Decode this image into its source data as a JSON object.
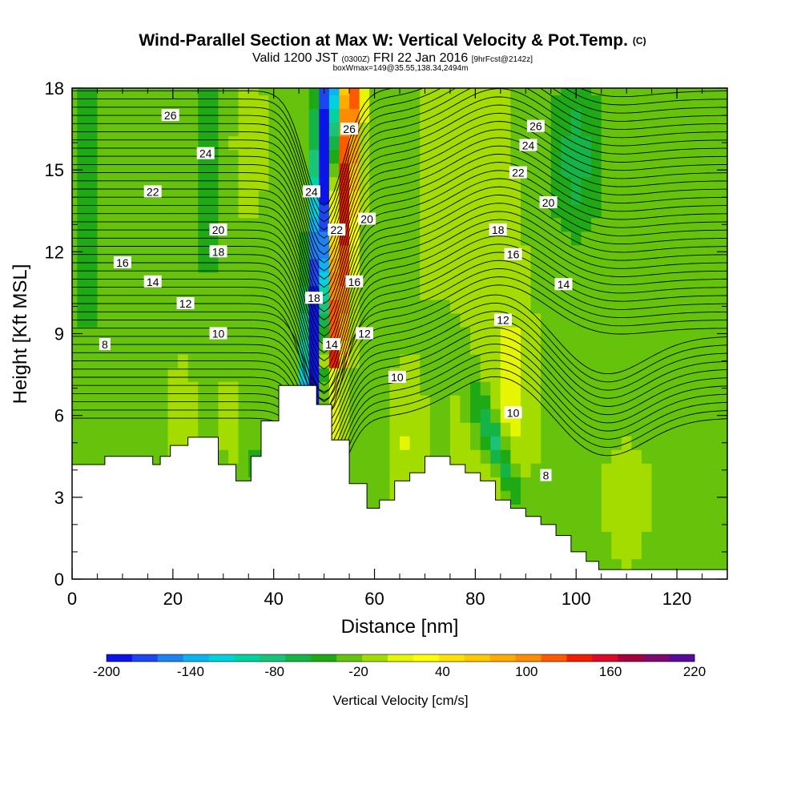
{
  "chart_data": {
    "type": "heatmap",
    "title": "Wind-Parallel Section at Max W: Vertical Velocity & Pot.Temp.",
    "title_mark": "(C)",
    "subtitle_parts": [
      "Valid 1200 JST ",
      "(0300Z)",
      " FRI 22 Jan 2016 ",
      "[9hrFcst@2142z]"
    ],
    "subtitle2": "boxWmax=149@35.55,138.34,2494m",
    "xlabel": "Distance [nm]",
    "ylabel": "Height [Kft MSL]",
    "xlim": [
      0,
      130
    ],
    "ylim": [
      0,
      18
    ],
    "x_ticks": [
      0,
      20,
      40,
      60,
      80,
      100,
      120
    ],
    "y_ticks": [
      0,
      3,
      6,
      9,
      12,
      15,
      18
    ],
    "x_tick_labels": [
      "0",
      "20",
      "40",
      "60",
      "80",
      "100",
      "120"
    ],
    "y_tick_labels": [
      "0",
      "3",
      "6",
      "9",
      "12",
      "15",
      "18"
    ],
    "colorbar": {
      "label": "Vertical Velocity [cm/s]",
      "min": -200,
      "max": 220,
      "step": 20,
      "tick_values": [
        -200,
        -140,
        -80,
        -20,
        40,
        100,
        160,
        220
      ],
      "tick_labels": [
        "-200",
        "-140",
        "-80",
        "-20",
        "40",
        "100",
        "160",
        "220"
      ],
      "colors": [
        "#0a14e6",
        "#1e46f0",
        "#1e82f0",
        "#0ab4f0",
        "#00d2dc",
        "#00d2a0",
        "#19c378",
        "#14b446",
        "#1eaa14",
        "#64c30a",
        "#a5dc00",
        "#e6f500",
        "#ffff00",
        "#ffe100",
        "#ffc800",
        "#ffaa00",
        "#ff8c00",
        "#ff5a00",
        "#f01e00",
        "#dc0a28",
        "#a5003c",
        "#7d0a6e",
        "#5a0a9b"
      ]
    },
    "vertical_velocity_cm_s": {
      "x": [
        0,
        2,
        4,
        6,
        8,
        10,
        12,
        14,
        16,
        18,
        20,
        22,
        24,
        26,
        28,
        30,
        32,
        34,
        36,
        38,
        40,
        42,
        44,
        46,
        48,
        50,
        52,
        54,
        56,
        58,
        60,
        62,
        64,
        66,
        68,
        70,
        72,
        74,
        76,
        78,
        80,
        82,
        84,
        86,
        88,
        90,
        92,
        94,
        96,
        98,
        100,
        102,
        104,
        106,
        108,
        110,
        112,
        114,
        116,
        118,
        120,
        122,
        124,
        126,
        128,
        130
      ],
      "y": [
        0,
        0.5,
        1,
        1.5,
        2,
        2.5,
        3,
        3.5,
        4,
        4.5,
        5,
        5.5,
        6,
        6.5,
        7,
        7.5,
        8,
        8.5,
        9,
        9.5,
        10,
        10.5,
        11,
        11.5,
        12,
        12.5,
        13,
        13.5,
        14,
        14.5,
        15,
        15.5,
        16,
        16.5,
        17,
        17.5,
        18
      ],
      "note": "computed field approximation"
    },
    "terrain_kft": [
      [
        0,
        4.2
      ],
      [
        6.5,
        4.2
      ],
      [
        6.5,
        4.5
      ],
      [
        16,
        4.5
      ],
      [
        16,
        4.2
      ],
      [
        17.5,
        4.2
      ],
      [
        17.5,
        4.5
      ],
      [
        19.5,
        4.5
      ],
      [
        19.5,
        4.9
      ],
      [
        23,
        4.9
      ],
      [
        23,
        5.2
      ],
      [
        29,
        5.2
      ],
      [
        29,
        4.2
      ],
      [
        32.5,
        4.2
      ],
      [
        32.5,
        3.6
      ],
      [
        35.5,
        3.6
      ],
      [
        35.5,
        4.5
      ],
      [
        37.5,
        4.5
      ],
      [
        37.5,
        5.8
      ],
      [
        41,
        5.8
      ],
      [
        41,
        7.1
      ],
      [
        48.5,
        7.1
      ],
      [
        48.5,
        6.4
      ],
      [
        51.5,
        6.4
      ],
      [
        51.5,
        5.1
      ],
      [
        55,
        5.1
      ],
      [
        55,
        3.5
      ],
      [
        58.5,
        3.5
      ],
      [
        58.5,
        2.6
      ],
      [
        61,
        2.6
      ],
      [
        61,
        2.9
      ],
      [
        64,
        2.9
      ],
      [
        64,
        3.6
      ],
      [
        67,
        3.6
      ],
      [
        67,
        3.9
      ],
      [
        70,
        3.9
      ],
      [
        70,
        4.5
      ],
      [
        75,
        4.5
      ],
      [
        75,
        4.2
      ],
      [
        78,
        4.2
      ],
      [
        78,
        3.9
      ],
      [
        81,
        3.9
      ],
      [
        81,
        3.6
      ],
      [
        84,
        3.6
      ],
      [
        84,
        2.9
      ],
      [
        87,
        2.9
      ],
      [
        87,
        2.6
      ],
      [
        90,
        2.6
      ],
      [
        90,
        2.3
      ],
      [
        93,
        2.3
      ],
      [
        93,
        2.0
      ],
      [
        96,
        2.0
      ],
      [
        96,
        1.6
      ],
      [
        99,
        1.6
      ],
      [
        99,
        1.0
      ],
      [
        102,
        1.0
      ],
      [
        102,
        0.65
      ],
      [
        104.5,
        0.65
      ],
      [
        104.5,
        0.35
      ],
      [
        130,
        0.35
      ]
    ],
    "isentropes": {
      "levels": [
        8,
        10,
        12,
        14,
        16,
        18,
        20,
        22,
        24,
        26
      ],
      "labels": [
        {
          "x": 19.5,
          "y": 17.0,
          "v": "26"
        },
        {
          "x": 26.5,
          "y": 15.6,
          "v": "24"
        },
        {
          "x": 16.0,
          "y": 14.2,
          "v": "22"
        },
        {
          "x": 29.0,
          "y": 12.8,
          "v": "20"
        },
        {
          "x": 29.0,
          "y": 12.0,
          "v": "18"
        },
        {
          "x": 10.0,
          "y": 11.6,
          "v": "16"
        },
        {
          "x": 16.0,
          "y": 10.9,
          "v": "14"
        },
        {
          "x": 22.5,
          "y": 10.1,
          "v": "12"
        },
        {
          "x": 29.0,
          "y": 9.0,
          "v": "10"
        },
        {
          "x": 6.5,
          "y": 8.6,
          "v": "8"
        },
        {
          "x": 55.0,
          "y": 16.5,
          "v": "26"
        },
        {
          "x": 47.5,
          "y": 14.2,
          "v": "24"
        },
        {
          "x": 52.5,
          "y": 12.8,
          "v": "22"
        },
        {
          "x": 58.5,
          "y": 13.2,
          "v": "20"
        },
        {
          "x": 48.0,
          "y": 10.3,
          "v": "18"
        },
        {
          "x": 56.0,
          "y": 10.9,
          "v": "16"
        },
        {
          "x": 51.5,
          "y": 8.6,
          "v": "14"
        },
        {
          "x": 58.0,
          "y": 9.0,
          "v": "12"
        },
        {
          "x": 64.5,
          "y": 7.4,
          "v": "10"
        },
        {
          "x": 92.0,
          "y": 16.6,
          "v": "26"
        },
        {
          "x": 90.5,
          "y": 15.9,
          "v": "24"
        },
        {
          "x": 88.5,
          "y": 14.9,
          "v": "22"
        },
        {
          "x": 94.5,
          "y": 13.8,
          "v": "20"
        },
        {
          "x": 84.5,
          "y": 12.8,
          "v": "18"
        },
        {
          "x": 87.5,
          "y": 11.9,
          "v": "16"
        },
        {
          "x": 97.5,
          "y": 10.8,
          "v": "14"
        },
        {
          "x": 85.5,
          "y": 9.5,
          "v": "12"
        },
        {
          "x": 87.5,
          "y": 6.1,
          "v": "10"
        },
        {
          "x": 94.0,
          "y": 3.8,
          "v": "8"
        }
      ]
    }
  }
}
